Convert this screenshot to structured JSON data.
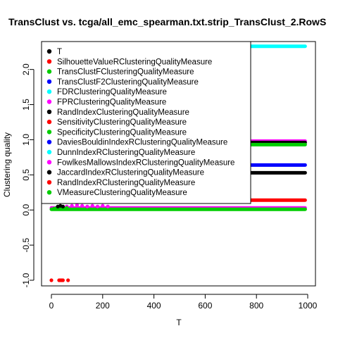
{
  "chart_data": {
    "type": "scatter",
    "title": "TransClust vs. tcga/all_emc_spearman.txt.strip_TransClust_2.RowS",
    "xlabel": "T",
    "ylabel": "Clustering quality",
    "xlim": [
      0,
      1000
    ],
    "ylim": [
      -1.05,
      2.55
    ],
    "x_ticks": [
      0,
      200,
      400,
      600,
      800,
      1000
    ],
    "y_ticks": [
      -1.0,
      -0.5,
      0.0,
      0.5,
      1.0,
      1.5,
      2.0
    ],
    "grid": false,
    "legend_position": "top-left",
    "legend": [
      {
        "label": "T",
        "color": "#000000"
      },
      {
        "label": "SilhouetteValueRClusteringQualityMeasure",
        "color": "#ff0000"
      },
      {
        "label": "TransClustFClusteringQualityMeasure",
        "color": "#00cd00"
      },
      {
        "label": "TransClustF2ClusteringQualityMeasure",
        "color": "#0000ff"
      },
      {
        "label": "FDRClusteringQualityMeasure",
        "color": "#00ffff"
      },
      {
        "label": "FPRClusteringQualityMeasure",
        "color": "#ff00ff"
      },
      {
        "label": "RandIndexClusteringQualityMeasure",
        "color": "#000000"
      },
      {
        "label": "SensitivityClusteringQualityMeasure",
        "color": "#ff0000"
      },
      {
        "label": "SpecificityClusteringQualityMeasure",
        "color": "#00cd00"
      },
      {
        "label": "DaviesBouldinIndexRClusteringQualityMeasure",
        "color": "#0000ff"
      },
      {
        "label": "DunnIndexRClusteringQualityMeasure",
        "color": "#00ffff"
      },
      {
        "label": "FowlkesMallowsIndexRClusteringQualityMeasure",
        "color": "#ff00ff"
      },
      {
        "label": "JaccardIndexRClusteringQualityMeasure",
        "color": "#000000"
      },
      {
        "label": "RandIndexRClusteringQualityMeasure",
        "color": "#ff0000"
      },
      {
        "label": "VMeasureClusteringQualityMeasure",
        "color": "#00cd00"
      }
    ],
    "series": [
      {
        "color": "#00ffff",
        "x_range": [
          0,
          990
        ],
        "y": 2.33
      },
      {
        "color": "#ff00ff",
        "x_range": [
          0,
          990
        ],
        "y": 0.98
      },
      {
        "color": "#000000",
        "x_range": [
          0,
          990
        ],
        "y": 0.96
      },
      {
        "color": "#00cd00",
        "x_range": [
          0,
          990
        ],
        "y": 0.93
      },
      {
        "color": "#0000ff",
        "x_range": [
          0,
          990
        ],
        "y": 0.64
      },
      {
        "color": "#000000",
        "x_range": [
          0,
          990
        ],
        "y": 0.53
      },
      {
        "color": "#ff0000",
        "x_range": [
          0,
          990
        ],
        "y": 0.14
      },
      {
        "color": "#ff00ff",
        "x_range": [
          0,
          990
        ],
        "y": 0.03
      },
      {
        "color": "#00cd00",
        "x_range": [
          0,
          990
        ],
        "y": 0.01
      }
    ],
    "outliers": [
      {
        "color": "#ff0000",
        "x": [
          0,
          30,
          35,
          40,
          45,
          65
        ],
        "y": [
          -1.0,
          -1.0,
          -1.0,
          -1.0,
          -1.0,
          -1.0
        ]
      },
      {
        "color": "#ff00ff",
        "x": [
          60,
          80,
          100,
          120,
          140,
          160,
          180,
          200,
          220
        ],
        "y": [
          0.05,
          0.06,
          0.07,
          0.06,
          0.05,
          0.06,
          0.05,
          0.06,
          0.05
        ]
      },
      {
        "color": "#00cd00",
        "x": [
          10,
          20,
          30,
          40,
          50,
          60
        ],
        "y": [
          0.02,
          0.03,
          0.04,
          0.03,
          0.02,
          0.03
        ]
      },
      {
        "color": "#000000",
        "x": [
          25,
          35,
          45
        ],
        "y": [
          0.05,
          0.06,
          0.05
        ]
      }
    ]
  }
}
